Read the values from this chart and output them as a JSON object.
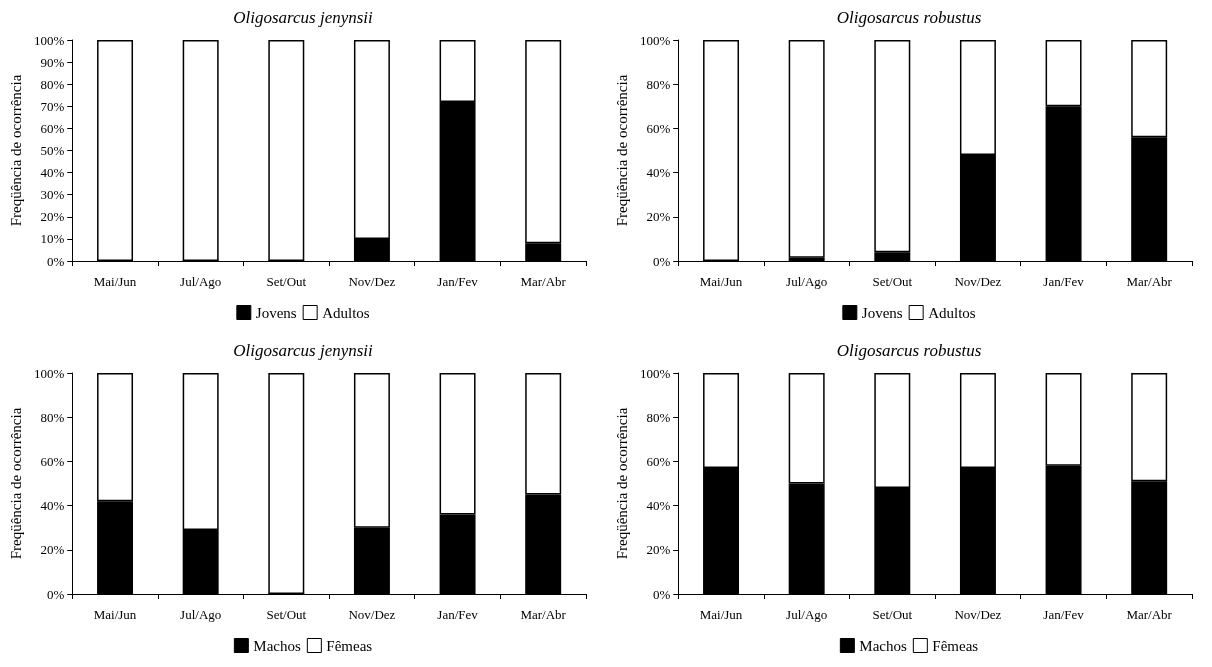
{
  "chart_data": [
    {
      "type": "bar",
      "title": "Oligosarcus jenynsii",
      "ylabel": "Freqüência de ocorrência",
      "categories": [
        "Mai/Jun",
        "Jul/Ago",
        "Set/Out",
        "Nov/Dez",
        "Jan/Fev",
        "Mar/Abr"
      ],
      "stacked": true,
      "legend": "bottom",
      "ylim": [
        0,
        100
      ],
      "yticks": [
        {
          "value": 0,
          "label": "0%"
        },
        {
          "value": 10,
          "label": "10%"
        },
        {
          "value": 20,
          "label": "20%"
        },
        {
          "value": 30,
          "label": "30%"
        },
        {
          "value": 40,
          "label": "40%"
        },
        {
          "value": 50,
          "label": "50%"
        },
        {
          "value": 60,
          "label": "60%"
        },
        {
          "value": 70,
          "label": "70%"
        },
        {
          "value": 80,
          "label": "80%"
        },
        {
          "value": 90,
          "label": "90%"
        },
        {
          "value": 100,
          "label": "100%"
        }
      ],
      "series": [
        {
          "name": "Jovens",
          "color": "#000000",
          "values": [
            0,
            0,
            0,
            10,
            72,
            8
          ]
        },
        {
          "name": "Adultos",
          "color": "#ffffff",
          "values": [
            100,
            100,
            100,
            90,
            28,
            92
          ]
        }
      ]
    },
    {
      "type": "bar",
      "title": "Oligosarcus robustus",
      "ylabel": "Freqüência de ocorrência",
      "categories": [
        "Mai/Jun",
        "Jul/Ago",
        "Set/Out",
        "Nov/Dez",
        "Jan/Fev",
        "Mar/Abr"
      ],
      "stacked": true,
      "legend": "bottom",
      "ylim": [
        0,
        100
      ],
      "yticks": [
        {
          "value": 0,
          "label": "0%"
        },
        {
          "value": 20,
          "label": "20%"
        },
        {
          "value": 40,
          "label": "40%"
        },
        {
          "value": 60,
          "label": "60%"
        },
        {
          "value": 80,
          "label": "80%"
        },
        {
          "value": 100,
          "label": "100%"
        }
      ],
      "series": [
        {
          "name": "Jovens",
          "color": "#000000",
          "values": [
            0,
            1.5,
            4,
            48,
            70,
            56
          ]
        },
        {
          "name": "Adultos",
          "color": "#ffffff",
          "values": [
            100,
            98.5,
            96,
            52,
            30,
            44
          ]
        }
      ]
    },
    {
      "type": "bar",
      "title": "Oligosarcus jenynsii",
      "ylabel": "Freqüência de ocorrência",
      "categories": [
        "Mai/Jun",
        "Jul/Ago",
        "Set/Out",
        "Nov/Dez",
        "Jan/Fev",
        "Mar/Abr"
      ],
      "stacked": true,
      "legend": "bottom",
      "ylim": [
        0,
        100
      ],
      "yticks": [
        {
          "value": 0,
          "label": "0%"
        },
        {
          "value": 20,
          "label": "20%"
        },
        {
          "value": 40,
          "label": "40%"
        },
        {
          "value": 60,
          "label": "60%"
        },
        {
          "value": 80,
          "label": "80%"
        },
        {
          "value": 100,
          "label": "100%"
        }
      ],
      "series": [
        {
          "name": "Machos",
          "color": "#000000",
          "values": [
            42,
            29,
            0,
            30,
            36,
            45
          ]
        },
        {
          "name": "Fêmeas",
          "color": "#ffffff",
          "values": [
            58,
            71,
            100,
            70,
            64,
            55
          ]
        }
      ]
    },
    {
      "type": "bar",
      "title": "Oligosarcus robustus",
      "ylabel": "Freqüência de ocorrência",
      "categories": [
        "Mai/Jun",
        "Jul/Ago",
        "Set/Out",
        "Nov/Dez",
        "Jan/Fev",
        "Mar/Abr"
      ],
      "stacked": true,
      "legend": "bottom",
      "ylim": [
        0,
        100
      ],
      "yticks": [
        {
          "value": 0,
          "label": "0%"
        },
        {
          "value": 20,
          "label": "20%"
        },
        {
          "value": 40,
          "label": "40%"
        },
        {
          "value": 60,
          "label": "60%"
        },
        {
          "value": 80,
          "label": "80%"
        },
        {
          "value": 100,
          "label": "100%"
        }
      ],
      "series": [
        {
          "name": "Machos",
          "color": "#000000",
          "values": [
            57,
            50,
            48,
            57,
            58,
            51
          ]
        },
        {
          "name": "Fêmeas",
          "color": "#ffffff",
          "values": [
            43,
            50,
            52,
            43,
            42,
            49
          ]
        }
      ]
    }
  ]
}
